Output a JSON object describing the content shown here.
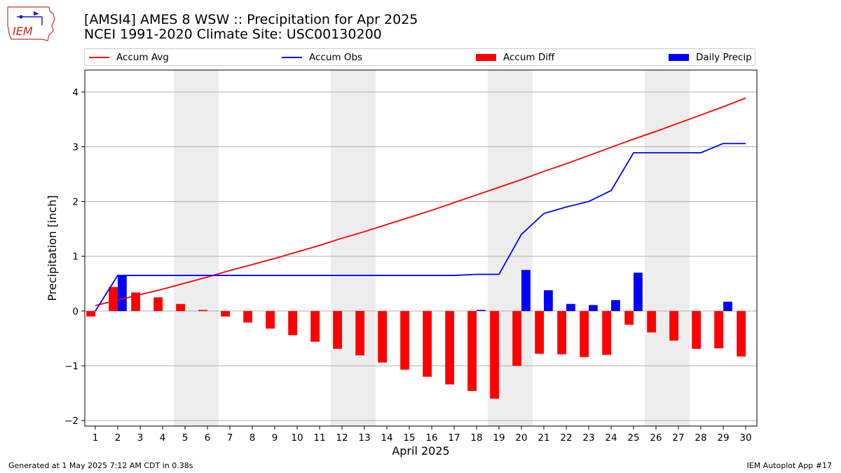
{
  "header": {
    "title_line1": "[AMSI4] AMES 8 WSW :: Precipitation for Apr 2025",
    "title_line2": "NCEI 1991-2020 Climate Site: USC00130200",
    "logo_text": "IEM"
  },
  "legend": {
    "items": [
      {
        "label": "Accum Avg",
        "kind": "line",
        "color": "#ff0000"
      },
      {
        "label": "Accum Obs",
        "kind": "line",
        "color": "#0000ff"
      },
      {
        "label": "Accum Diff",
        "kind": "bar",
        "color": "#ff0000"
      },
      {
        "label": "Daily Precip",
        "kind": "bar",
        "color": "#0000ff"
      }
    ]
  },
  "footer": {
    "generated": "Generated at 1 May 2025 7:12 AM CDT in 0.38s",
    "app": "IEM Autoplot App #17"
  },
  "chart_data": {
    "type": "bar",
    "xlabel": "April 2025",
    "ylabel": "Precipitation [inch]",
    "ylim": [
      -2.1,
      4.4
    ],
    "yticks": [
      -2,
      -1,
      0,
      1,
      2,
      3,
      4
    ],
    "ytick_labels": [
      "−2",
      "−1",
      "0",
      "1",
      "2",
      "3",
      "4"
    ],
    "grid": true,
    "legend_position": "top",
    "categories": [
      "1",
      "2",
      "3",
      "4",
      "5",
      "6",
      "7",
      "8",
      "9",
      "10",
      "11",
      "12",
      "13",
      "14",
      "15",
      "16",
      "17",
      "18",
      "19",
      "20",
      "21",
      "22",
      "23",
      "24",
      "25",
      "26",
      "27",
      "28",
      "29",
      "30"
    ],
    "weekend_days": [
      5,
      6,
      12,
      13,
      19,
      20,
      26,
      27
    ],
    "series": [
      {
        "name": "Accum Avg",
        "type": "line",
        "color": "#ff0000",
        "values": [
          0.1,
          0.2,
          0.3,
          0.4,
          0.51,
          0.62,
          0.74,
          0.85,
          0.96,
          1.08,
          1.2,
          1.33,
          1.45,
          1.58,
          1.71,
          1.84,
          1.98,
          2.12,
          2.26,
          2.4,
          2.55,
          2.69,
          2.84,
          2.99,
          3.14,
          3.28,
          3.43,
          3.58,
          3.73,
          3.89
        ]
      },
      {
        "name": "Accum Obs",
        "type": "line",
        "color": "#0000ff",
        "values": [
          0.0,
          0.65,
          0.65,
          0.65,
          0.65,
          0.65,
          0.65,
          0.65,
          0.65,
          0.65,
          0.65,
          0.65,
          0.65,
          0.65,
          0.65,
          0.65,
          0.65,
          0.67,
          0.67,
          1.4,
          1.78,
          1.9,
          2.0,
          2.2,
          2.89,
          2.89,
          2.89,
          2.89,
          3.06,
          3.06
        ]
      },
      {
        "name": "Accum Diff",
        "type": "bar",
        "color": "#ff0000",
        "values": [
          -0.1,
          0.44,
          0.34,
          0.25,
          0.13,
          0.02,
          -0.1,
          -0.21,
          -0.32,
          -0.44,
          -0.56,
          -0.69,
          -0.81,
          -0.94,
          -1.07,
          -1.2,
          -1.34,
          -1.46,
          -1.6,
          -1.0,
          -0.78,
          -0.79,
          -0.84,
          -0.8,
          -0.25,
          -0.39,
          -0.54,
          -0.69,
          -0.68,
          -0.83
        ]
      },
      {
        "name": "Daily Precip",
        "type": "bar",
        "color": "#0000ff",
        "values": [
          0.0,
          0.65,
          0.0,
          0.0,
          0.0,
          0.0,
          0.0,
          0.0,
          0.0,
          0.0,
          0.0,
          0.0,
          0.0,
          0.0,
          0.0,
          0.0,
          0.0,
          0.02,
          0.0,
          0.75,
          0.38,
          0.13,
          0.11,
          0.2,
          0.7,
          0.0,
          0.0,
          0.0,
          0.17,
          0.0
        ]
      }
    ]
  }
}
